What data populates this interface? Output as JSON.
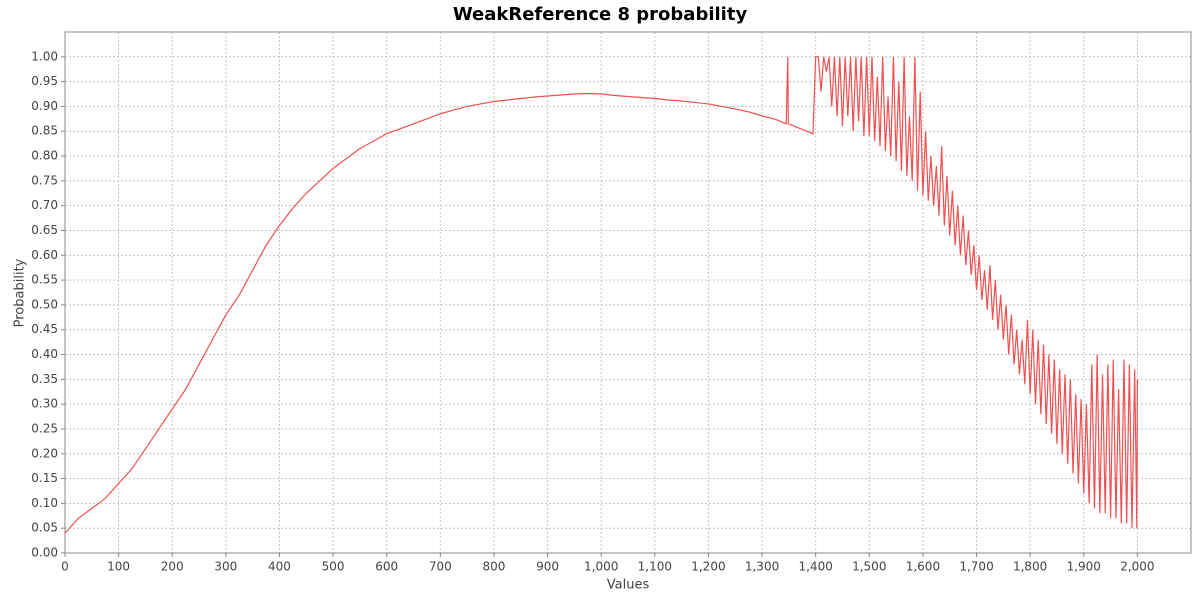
{
  "chart_data": {
    "type": "line",
    "title": "WeakReference 8 probability",
    "x_label": "Values",
    "y_label": "Probability",
    "xlim": [
      0,
      2100
    ],
    "ylim": [
      0,
      1.05
    ],
    "grid": true,
    "xticks": [
      0,
      100,
      200,
      300,
      400,
      500,
      600,
      700,
      800,
      900,
      {
        "value": 1000,
        "label": "1,000"
      },
      {
        "value": 1100,
        "label": "1,100"
      },
      {
        "value": 1200,
        "label": "1,200"
      },
      {
        "value": 1300,
        "label": "1,300"
      },
      {
        "value": 1400,
        "label": "1,400"
      },
      {
        "value": 1500,
        "label": "1,500"
      },
      {
        "value": 1600,
        "label": "1,600"
      },
      {
        "value": 1700,
        "label": "1,700"
      },
      {
        "value": 1800,
        "label": "1,800"
      },
      {
        "value": 1900,
        "label": "1,900"
      },
      {
        "value": 2000,
        "label": "2,000"
      }
    ],
    "yticks": [
      {
        "value": 0,
        "label": "0.00"
      },
      0.05,
      {
        "value": 0.1,
        "label": "0.10"
      },
      0.15,
      {
        "value": 0.2,
        "label": "0.20"
      },
      0.25,
      {
        "value": 0.3,
        "label": "0.30"
      },
      0.35,
      {
        "value": 0.4,
        "label": "0.40"
      },
      0.45,
      {
        "value": 0.5,
        "label": "0.50"
      },
      0.55,
      {
        "value": 0.6,
        "label": "0.60"
      },
      0.65,
      {
        "value": 0.7,
        "label": "0.70"
      },
      0.75,
      {
        "value": 0.8,
        "label": "0.80"
      },
      0.85,
      {
        "value": 0.9,
        "label": "0.90"
      },
      0.95,
      {
        "value": 1,
        "label": "1.00"
      }
    ],
    "series": [
      {
        "color": "#f05050",
        "x": [
          0,
          25,
          50,
          75,
          100,
          125,
          150,
          175,
          200,
          225,
          250,
          275,
          300,
          325,
          350,
          375,
          400,
          425,
          450,
          475,
          500,
          525,
          550,
          575,
          600,
          625,
          650,
          675,
          700,
          725,
          750,
          775,
          800,
          825,
          850,
          875,
          900,
          925,
          950,
          975,
          1000,
          1025,
          1050,
          1075,
          1100,
          1125,
          1150,
          1175,
          1200,
          1225,
          1250,
          1275,
          1300,
          1325,
          1345,
          1348,
          1349,
          1395,
          1400,
          1405,
          1410,
          1415,
          1420,
          1425,
          1430,
          1435,
          1440,
          1445,
          1450,
          1455,
          1460,
          1465,
          1470,
          1475,
          1480,
          1485,
          1490,
          1495,
          1500,
          1505,
          1510,
          1515,
          1520,
          1525,
          1530,
          1535,
          1540,
          1545,
          1550,
          1555,
          1560,
          1565,
          1570,
          1575,
          1580,
          1585,
          1590,
          1595,
          1600,
          1605,
          1610,
          1615,
          1620,
          1625,
          1630,
          1635,
          1640,
          1645,
          1650,
          1655,
          1660,
          1665,
          1670,
          1675,
          1680,
          1685,
          1690,
          1695,
          1700,
          1705,
          1710,
          1715,
          1720,
          1725,
          1730,
          1735,
          1740,
          1745,
          1750,
          1755,
          1760,
          1765,
          1770,
          1775,
          1780,
          1785,
          1790,
          1795,
          1800,
          1805,
          1810,
          1815,
          1820,
          1825,
          1830,
          1835,
          1840,
          1845,
          1850,
          1855,
          1860,
          1865,
          1870,
          1875,
          1880,
          1885,
          1890,
          1895,
          1900,
          1905,
          1910,
          1915,
          1920,
          1925,
          1930,
          1935,
          1940,
          1945,
          1950,
          1955,
          1960,
          1965,
          1970,
          1975,
          1980,
          1985,
          1990,
          1995,
          1999,
          2000
        ],
        "values": [
          0.04,
          0.07,
          0.09,
          0.11,
          0.14,
          0.17,
          0.21,
          0.25,
          0.29,
          0.33,
          0.38,
          0.43,
          0.48,
          0.52,
          0.57,
          0.62,
          0.66,
          0.695,
          0.725,
          0.75,
          0.775,
          0.795,
          0.815,
          0.83,
          0.845,
          0.855,
          0.865,
          0.875,
          0.885,
          0.893,
          0.9,
          0.905,
          0.91,
          0.913,
          0.916,
          0.919,
          0.921,
          0.923,
          0.925,
          0.926,
          0.925,
          0.922,
          0.92,
          0.918,
          0.916,
          0.913,
          0.911,
          0.908,
          0.905,
          0.9,
          0.895,
          0.889,
          0.881,
          0.874,
          0.865,
          1.0,
          0.865,
          0.845,
          1.0,
          1.0,
          0.93,
          1.0,
          0.97,
          1.0,
          0.9,
          1.0,
          0.88,
          1.0,
          0.86,
          1.0,
          0.88,
          1.0,
          0.85,
          1.0,
          0.87,
          1.0,
          0.84,
          1.0,
          0.84,
          1.0,
          0.83,
          0.96,
          0.82,
          1.0,
          0.81,
          0.92,
          0.8,
          1.0,
          0.79,
          0.95,
          0.77,
          1.0,
          0.76,
          0.88,
          0.75,
          1.0,
          0.73,
          0.93,
          0.72,
          0.85,
          0.71,
          0.8,
          0.7,
          0.78,
          0.68,
          0.82,
          0.66,
          0.76,
          0.64,
          0.73,
          0.62,
          0.7,
          0.6,
          0.68,
          0.58,
          0.65,
          0.56,
          0.62,
          0.53,
          0.6,
          0.51,
          0.57,
          0.49,
          0.58,
          0.47,
          0.55,
          0.45,
          0.52,
          0.43,
          0.5,
          0.4,
          0.48,
          0.38,
          0.45,
          0.36,
          0.43,
          0.34,
          0.47,
          0.32,
          0.45,
          0.3,
          0.43,
          0.28,
          0.42,
          0.26,
          0.4,
          0.24,
          0.39,
          0.22,
          0.37,
          0.2,
          0.36,
          0.18,
          0.35,
          0.16,
          0.32,
          0.14,
          0.31,
          0.12,
          0.3,
          0.1,
          0.38,
          0.09,
          0.4,
          0.08,
          0.36,
          0.08,
          0.38,
          0.07,
          0.39,
          0.07,
          0.33,
          0.06,
          0.39,
          0.06,
          0.38,
          0.05,
          0.37,
          0.05,
          0.35
        ]
      }
    ]
  }
}
